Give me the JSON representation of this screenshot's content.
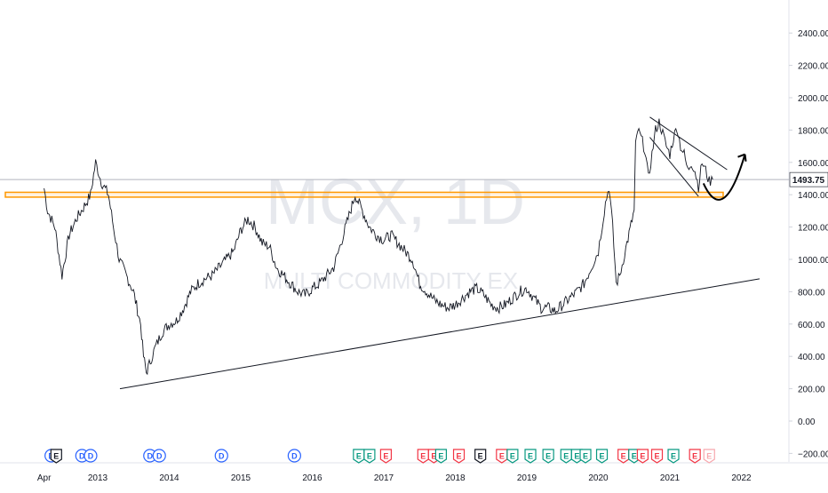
{
  "watermark": {
    "symbol": "MCX, 1D",
    "name": "MULTI COMMODITY EX"
  },
  "colors": {
    "price": "#131722",
    "grid": "#f0f3fa",
    "axis_text": "#131722",
    "orange": "#ff9800",
    "ref_line": "#b2b5be",
    "price_tag_bg": "#ffffff",
    "badge_blue": "#2962ff",
    "badge_green": "#089981",
    "badge_red": "#f23645",
    "badge_dark": "#131722"
  },
  "last_price": "1493.75",
  "chart_data": {
    "type": "line",
    "title": "",
    "xlabel": "",
    "ylabel": "",
    "x_tick_labels": [
      "Apr",
      "2013",
      "2014",
      "2015",
      "2016",
      "2017",
      "2018",
      "2019",
      "2020",
      "2021",
      "2022"
    ],
    "y_tick_labels": [
      "2400.00",
      "2200.00",
      "2000.00",
      "1800.00",
      "1600.00",
      "1400.00",
      "1200.00",
      "1000.00",
      "800.00",
      "600.00",
      "400.00",
      "200.00",
      "0.00",
      "−200.00"
    ],
    "ylim": [
      -200,
      2400
    ],
    "xlim": [
      2012.25,
      2022.1
    ],
    "grid": false,
    "series": [
      {
        "x": [
          2012.25,
          2012.3,
          2012.4,
          2012.5,
          2012.6,
          2012.7,
          2012.8,
          2012.9,
          2012.97,
          2013.05,
          2013.15,
          2013.22,
          2013.3,
          2013.4,
          2013.5,
          2013.6,
          2013.64,
          2013.68,
          2013.72,
          2013.8,
          2013.9,
          2014.0,
          2014.1,
          2014.2,
          2014.3,
          2014.4,
          2014.5,
          2014.6,
          2014.7,
          2014.8,
          2014.9,
          2015.0,
          2015.1,
          2015.2,
          2015.3,
          2015.4,
          2015.5,
          2015.6,
          2015.7,
          2015.8,
          2015.9,
          2016.0,
          2016.1,
          2016.2,
          2016.3,
          2016.4,
          2016.5,
          2016.6,
          2016.7,
          2016.8,
          2016.9,
          2017.0,
          2017.1,
          2017.2,
          2017.3,
          2017.4,
          2017.5,
          2017.6,
          2017.7,
          2017.8,
          2017.9,
          2018.0,
          2018.1,
          2018.2,
          2018.3,
          2018.4,
          2018.5,
          2018.6,
          2018.7,
          2018.8,
          2018.9,
          2019.0,
          2019.1,
          2019.2,
          2019.3,
          2019.4,
          2019.5,
          2019.6,
          2019.7,
          2019.8,
          2019.9,
          2020.0,
          2020.05,
          2020.1,
          2020.15,
          2020.2,
          2020.25,
          2020.3,
          2020.35,
          2020.4,
          2020.5,
          2020.52,
          2020.55,
          2020.6,
          2020.65,
          2020.7,
          2020.75,
          2020.8,
          2020.85,
          2020.9,
          2020.95,
          2021.0,
          2021.05,
          2021.1,
          2021.15,
          2021.2,
          2021.25,
          2021.3,
          2021.35,
          2021.4,
          2021.45,
          2021.5,
          2021.55,
          2021.6
        ],
        "y": [
          1440,
          1300,
          1200,
          900,
          1150,
          1250,
          1320,
          1400,
          1600,
          1480,
          1400,
          1200,
          1000,
          900,
          800,
          600,
          400,
          300,
          350,
          450,
          550,
          600,
          620,
          700,
          800,
          850,
          880,
          900,
          950,
          1000,
          1050,
          1180,
          1250,
          1200,
          1100,
          1080,
          950,
          900,
          850,
          800,
          780,
          820,
          850,
          900,
          950,
          1100,
          1250,
          1400,
          1300,
          1200,
          1150,
          1120,
          1150,
          1100,
          1050,
          1000,
          850,
          800,
          750,
          720,
          700,
          720,
          760,
          800,
          820,
          780,
          720,
          700,
          720,
          760,
          800,
          820,
          760,
          700,
          700,
          680,
          720,
          760,
          800,
          850,
          950,
          1050,
          1200,
          1350,
          1450,
          1200,
          850,
          900,
          1000,
          1100,
          1300,
          1700,
          1800,
          1750,
          1680,
          1500,
          1650,
          1800,
          1850,
          1780,
          1700,
          1650,
          1750,
          1820,
          1700,
          1650,
          1550,
          1600,
          1550,
          1450,
          1600,
          1550,
          1480,
          1494
        ]
      }
    ],
    "annotations": [
      "horizontal resistance zone ~1400",
      "rising trendline",
      "falling channel",
      "curved projection arrow"
    ]
  },
  "event_markers": [
    {
      "x": 2012.35,
      "label": "D",
      "kind": "blue"
    },
    {
      "x": 2012.42,
      "label": "E",
      "kind": "dark"
    },
    {
      "x": 2012.78,
      "label": "D",
      "kind": "blue"
    },
    {
      "x": 2012.9,
      "label": "D",
      "kind": "blue"
    },
    {
      "x": 2013.73,
      "label": "D",
      "kind": "blue"
    },
    {
      "x": 2013.86,
      "label": "D",
      "kind": "blue"
    },
    {
      "x": 2014.73,
      "label": "D",
      "kind": "blue"
    },
    {
      "x": 2015.75,
      "label": "D",
      "kind": "blue"
    },
    {
      "x": 2016.65,
      "label": "E",
      "kind": "green"
    },
    {
      "x": 2016.8,
      "label": "E",
      "kind": "green"
    },
    {
      "x": 2017.03,
      "label": "E",
      "kind": "red"
    },
    {
      "x": 2017.55,
      "label": "E",
      "kind": "red"
    },
    {
      "x": 2017.7,
      "label": "E",
      "kind": "red"
    },
    {
      "x": 2017.8,
      "label": "E",
      "kind": "green"
    },
    {
      "x": 2018.05,
      "label": "E",
      "kind": "red"
    },
    {
      "x": 2018.35,
      "label": "E",
      "kind": "dark"
    },
    {
      "x": 2018.65,
      "label": "E",
      "kind": "red"
    },
    {
      "x": 2018.8,
      "label": "E",
      "kind": "green"
    },
    {
      "x": 2019.05,
      "label": "E",
      "kind": "green"
    },
    {
      "x": 2019.3,
      "label": "E",
      "kind": "green"
    },
    {
      "x": 2019.55,
      "label": "E",
      "kind": "green"
    },
    {
      "x": 2019.7,
      "label": "E",
      "kind": "green"
    },
    {
      "x": 2019.82,
      "label": "E",
      "kind": "green"
    },
    {
      "x": 2020.05,
      "label": "E",
      "kind": "green"
    },
    {
      "x": 2020.35,
      "label": "E",
      "kind": "red"
    },
    {
      "x": 2020.5,
      "label": "E",
      "kind": "green"
    },
    {
      "x": 2020.62,
      "label": "E",
      "kind": "red"
    },
    {
      "x": 2020.82,
      "label": "E",
      "kind": "red"
    },
    {
      "x": 2021.05,
      "label": "E",
      "kind": "green"
    },
    {
      "x": 2021.35,
      "label": "E",
      "kind": "red"
    },
    {
      "x": 2021.55,
      "label": "E",
      "kind": "faded"
    }
  ]
}
